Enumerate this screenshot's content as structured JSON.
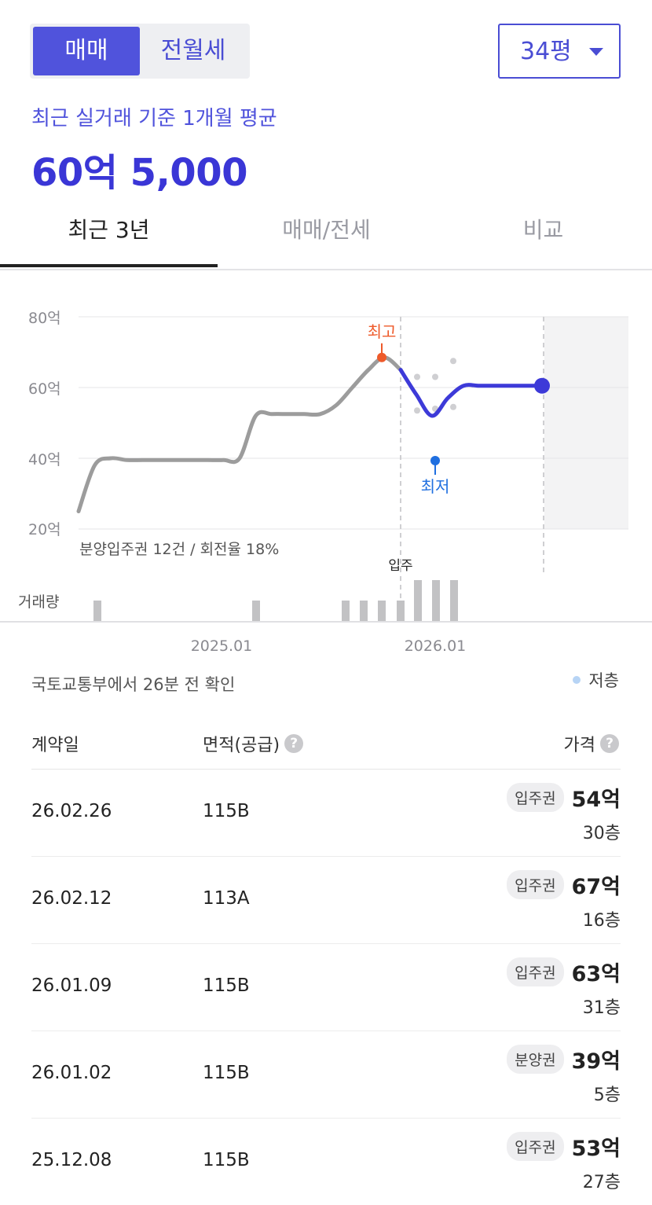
{
  "deal_tabs": {
    "sale": "매매",
    "rent": "전월세"
  },
  "size_select": {
    "value": "34평"
  },
  "summary": {
    "basis": "최근 실거래 기준 1개월 평균",
    "average_price": "60억 5,000"
  },
  "view_tabs": [
    "최근 3년",
    "매매/전세",
    "비교"
  ],
  "chart_data": {
    "type": "line",
    "yticks": [
      "80억",
      "60억",
      "40억",
      "20억"
    ],
    "ylim": [
      20,
      80
    ],
    "xticks": [
      "2025.01",
      "2026.01"
    ],
    "high_label": "최고",
    "low_label": "최저",
    "move_in_label": "입주",
    "presale_note": "분양입주권 12건 / 회전율 18%",
    "volume_label": "거래량",
    "series": [
      {
        "values": [
          25,
          38,
          40,
          39.5,
          39.5,
          39.5,
          39.5,
          39.5,
          39.5,
          39.5,
          40,
          52,
          52.5,
          52.5,
          52.5,
          52.5,
          55,
          60,
          65,
          68.5,
          65
        ]
      },
      {
        "values": [
          65,
          58,
          52,
          57,
          60.5,
          60.5,
          60.5,
          60.5,
          60.5,
          60.5
        ]
      }
    ],
    "high_value": 68.5,
    "low_value": 51.5,
    "floor_legend": "저층",
    "gray_dots": [
      63,
      53.5,
      63,
      54,
      67.5,
      54.5
    ]
  },
  "check_text": "국토교통부에서 26분 전 확인",
  "table": {
    "headers": {
      "date": "계약일",
      "area": "면적(공급)",
      "price": "가격"
    },
    "help_glyph": "?",
    "rows": [
      {
        "date": "26.02.26",
        "area": "115B",
        "badge": "입주권",
        "amount": "54억",
        "floor": "30층"
      },
      {
        "date": "26.02.12",
        "area": "113A",
        "badge": "입주권",
        "amount": "67억",
        "floor": "16층"
      },
      {
        "date": "26.01.09",
        "area": "115B",
        "badge": "입주권",
        "amount": "63억",
        "floor": "31층"
      },
      {
        "date": "26.01.02",
        "area": "115B",
        "badge": "분양권",
        "amount": "39억",
        "floor": "5층"
      },
      {
        "date": "25.12.08",
        "area": "115B",
        "badge": "입주권",
        "amount": "53억",
        "floor": "27층"
      }
    ]
  },
  "colors": {
    "accent": "#4a4dd4",
    "high": "#ee5a2a",
    "low": "#1f6fe0",
    "history_line": "#9c9c9c"
  }
}
